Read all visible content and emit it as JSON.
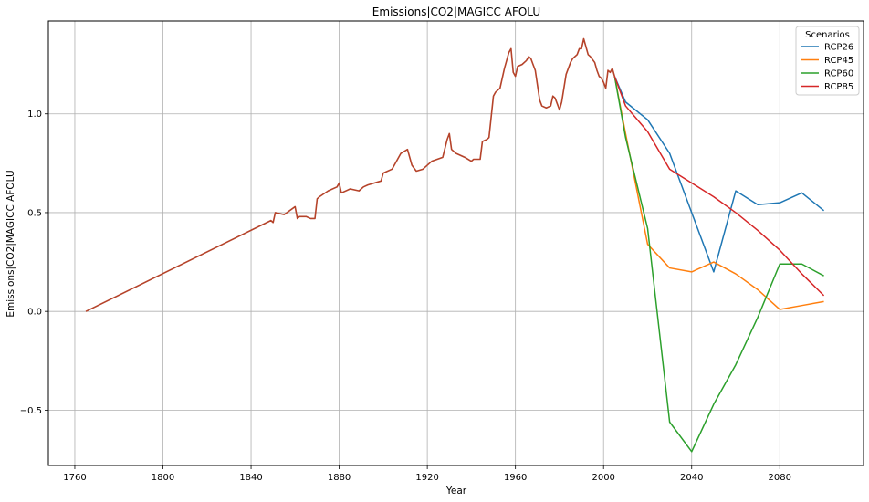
{
  "chart_data": {
    "type": "line",
    "title": "Emissions|CO2|MAGICC AFOLU",
    "xlabel": "Year",
    "ylabel": "Emissions|CO2|MAGICC AFOLU",
    "xlim": [
      1748,
      2118
    ],
    "ylim": [
      -0.78,
      1.47
    ],
    "xticks": [
      1760,
      1800,
      1840,
      1880,
      1920,
      1960,
      2000,
      2040,
      2080
    ],
    "xtick_labels": [
      "1760",
      "1800",
      "1840",
      "1880",
      "1920",
      "1960",
      "2000",
      "2040",
      "2080"
    ],
    "yticks": [
      -0.5,
      0.0,
      0.5,
      1.0
    ],
    "ytick_labels": [
      "−0.5",
      "0.0",
      "0.5",
      "1.0"
    ],
    "grid": true,
    "legend": {
      "title": "Scenarios",
      "placement": "top-right"
    },
    "historical": {
      "color": "#b5432a",
      "x": [
        1765,
        1849,
        1850,
        1851,
        1855,
        1860,
        1861,
        1862,
        1865,
        1867,
        1869,
        1870,
        1871,
        1875,
        1879,
        1880,
        1881,
        1885,
        1889,
        1891,
        1893,
        1899,
        1900,
        1904,
        1908,
        1911,
        1913,
        1915,
        1918,
        1922,
        1927,
        1929,
        1930,
        1931,
        1933,
        1937,
        1940,
        1941,
        1944,
        1945,
        1947,
        1948,
        1950,
        1951,
        1953,
        1955,
        1956,
        1957,
        1958,
        1959,
        1960,
        1961,
        1963,
        1965,
        1966,
        1967,
        1968,
        1969,
        1971,
        1972,
        1974,
        1976,
        1977,
        1978,
        1980,
        1981,
        1983,
        1985,
        1986,
        1988,
        1989,
        1990,
        1991,
        1993,
        1994,
        1996,
        1997,
        1998,
        1999,
        2000,
        2001,
        2002,
        2003,
        2004,
        2005
      ],
      "y": [
        0.0,
        0.46,
        0.45,
        0.5,
        0.49,
        0.53,
        0.47,
        0.48,
        0.48,
        0.47,
        0.47,
        0.57,
        0.58,
        0.61,
        0.63,
        0.65,
        0.6,
        0.62,
        0.61,
        0.63,
        0.64,
        0.66,
        0.7,
        0.72,
        0.8,
        0.82,
        0.74,
        0.71,
        0.72,
        0.76,
        0.78,
        0.87,
        0.9,
        0.82,
        0.8,
        0.78,
        0.76,
        0.77,
        0.77,
        0.86,
        0.87,
        0.88,
        1.09,
        1.11,
        1.13,
        1.23,
        1.27,
        1.31,
        1.33,
        1.21,
        1.19,
        1.24,
        1.25,
        1.27,
        1.29,
        1.28,
        1.25,
        1.22,
        1.07,
        1.04,
        1.03,
        1.04,
        1.09,
        1.08,
        1.02,
        1.06,
        1.2,
        1.26,
        1.28,
        1.3,
        1.33,
        1.33,
        1.38,
        1.3,
        1.29,
        1.26,
        1.22,
        1.19,
        1.18,
        1.16,
        1.13,
        1.22,
        1.21,
        1.23,
        1.19
      ]
    },
    "series": [
      {
        "name": "RCP26",
        "color": "#1f77b4",
        "x": [
          2005,
          2010,
          2020,
          2030,
          2040,
          2050,
          2060,
          2070,
          2080,
          2090,
          2100
        ],
        "y": [
          1.19,
          1.06,
          0.97,
          0.8,
          0.5,
          0.2,
          0.61,
          0.54,
          0.55,
          0.6,
          0.51
        ]
      },
      {
        "name": "RCP45",
        "color": "#ff7f0e",
        "x": [
          2005,
          2010,
          2020,
          2030,
          2040,
          2050,
          2060,
          2070,
          2080,
          2090,
          2100
        ],
        "y": [
          1.19,
          0.9,
          0.34,
          0.22,
          0.2,
          0.25,
          0.19,
          0.11,
          0.01,
          0.03,
          0.05
        ]
      },
      {
        "name": "RCP60",
        "color": "#2ca02c",
        "x": [
          2005,
          2010,
          2020,
          2030,
          2040,
          2050,
          2060,
          2070,
          2080,
          2090,
          2100
        ],
        "y": [
          1.19,
          0.88,
          0.42,
          -0.56,
          -0.71,
          -0.47,
          -0.27,
          -0.03,
          0.24,
          0.24,
          0.18
        ]
      },
      {
        "name": "RCP85",
        "color": "#d62728",
        "x": [
          2005,
          2010,
          2020,
          2030,
          2040,
          2050,
          2060,
          2070,
          2080,
          2090,
          2100
        ],
        "y": [
          1.19,
          1.04,
          0.91,
          0.72,
          0.65,
          0.58,
          0.5,
          0.41,
          0.31,
          0.19,
          0.08
        ]
      }
    ]
  }
}
